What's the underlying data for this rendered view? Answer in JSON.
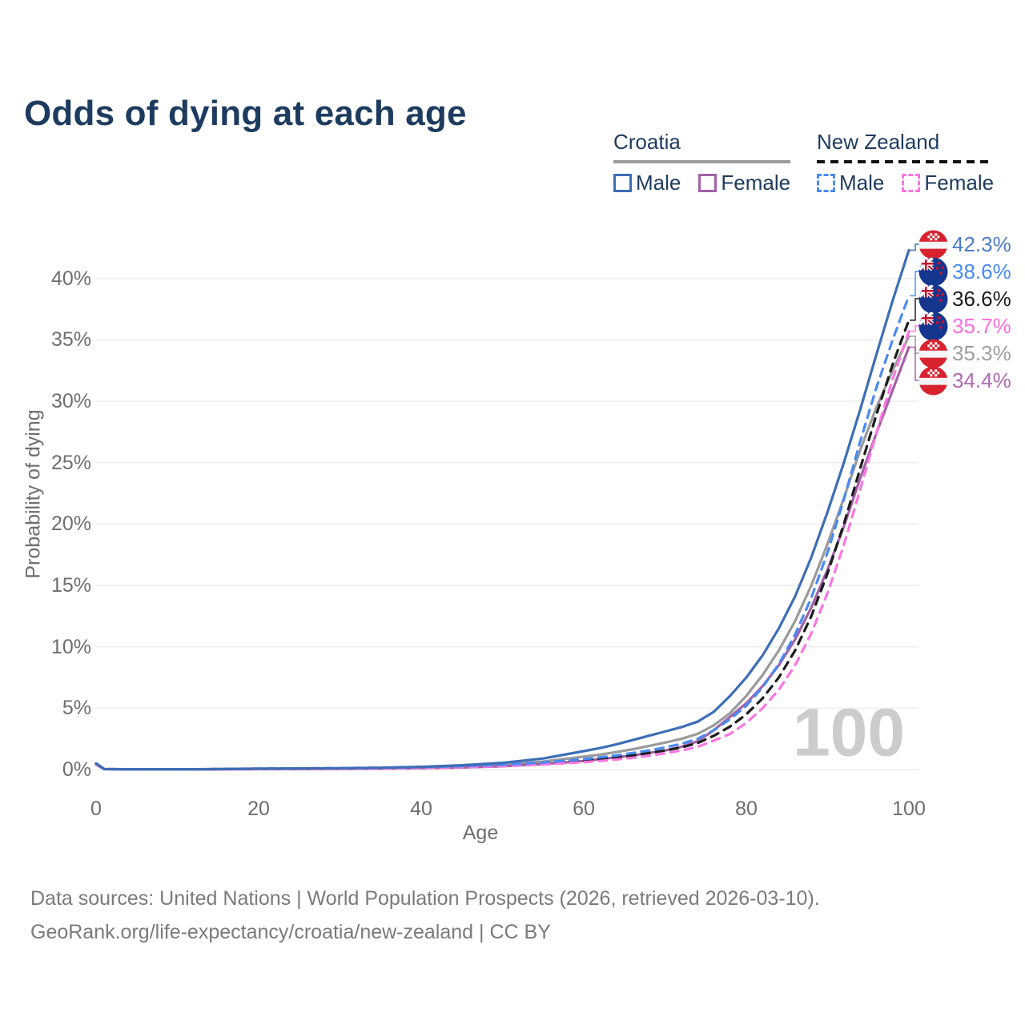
{
  "title": "Odds of dying at each age",
  "legend": {
    "groups": [
      {
        "label": "Croatia",
        "underline_style": "solid",
        "underline_color": "#9b9b9b",
        "items": [
          {
            "label": "Male",
            "color": "#3d6eb6",
            "dash": false
          },
          {
            "label": "Female",
            "color": "#a261a6",
            "dash": false
          }
        ]
      },
      {
        "label": "New Zealand",
        "underline_style": "dashed",
        "underline_color": "#111111",
        "items": [
          {
            "label": "Male",
            "color": "#4a8af2",
            "dash": true
          },
          {
            "label": "Female",
            "color": "#fb76e1",
            "dash": true
          }
        ]
      }
    ]
  },
  "axes": {
    "x": {
      "label": "Age",
      "tick_values": [
        0,
        20,
        40,
        60,
        80,
        100
      ],
      "tick_labels": [
        "0",
        "20",
        "40",
        "60",
        "80",
        "100"
      ],
      "range": [
        0,
        100
      ]
    },
    "y": {
      "label": "Probability of dying",
      "tick_values": [
        0,
        5,
        10,
        15,
        20,
        25,
        30,
        35,
        40
      ],
      "tick_labels": [
        "0%",
        "5%",
        "10%",
        "15%",
        "20%",
        "25%",
        "30%",
        "35%",
        "40%"
      ],
      "range": [
        0,
        43
      ],
      "unit": "%"
    }
  },
  "watermark": "100",
  "colors": {
    "gridline": "#ececec",
    "tick_text": "#6e6e6e",
    "title_text": "#1d3b5e",
    "footer_text": "#7a7a7a",
    "watermark_text": "#cccccc"
  },
  "chart_data": {
    "type": "line",
    "x_label": "Age",
    "y_label": "Probability of dying",
    "x": [
      0,
      1,
      5,
      10,
      15,
      20,
      25,
      30,
      35,
      40,
      45,
      50,
      55,
      60,
      62,
      64,
      66,
      68,
      70,
      72,
      74,
      76,
      78,
      80,
      82,
      84,
      86,
      88,
      90,
      92,
      94,
      96,
      98,
      100
    ],
    "series": [
      {
        "name": "Croatia Male",
        "color": "#3d6eb6",
        "dash": "solid",
        "flag": "croatia",
        "end_label": "42.3%",
        "end_label_color": "#4a7cc9",
        "values": [
          0.5,
          0.04,
          0.02,
          0.02,
          0.04,
          0.07,
          0.09,
          0.11,
          0.15,
          0.22,
          0.35,
          0.55,
          0.9,
          1.5,
          1.75,
          2.05,
          2.4,
          2.75,
          3.1,
          3.45,
          3.9,
          4.7,
          6.0,
          7.5,
          9.3,
          11.5,
          14.1,
          17.3,
          21.0,
          25.0,
          29.3,
          33.8,
          38.2,
          42.3
        ]
      },
      {
        "name": "New Zealand Male",
        "color": "#4a8af2",
        "dash": "dashed",
        "flag": "new-zealand",
        "end_label": "38.6%",
        "end_label_color": "#4a8af2",
        "values": [
          0.5,
          0.04,
          0.01,
          0.01,
          0.04,
          0.08,
          0.1,
          0.12,
          0.15,
          0.2,
          0.28,
          0.4,
          0.58,
          0.85,
          1.0,
          1.15,
          1.35,
          1.55,
          1.8,
          2.1,
          2.5,
          3.2,
          4.1,
          5.2,
          6.7,
          8.6,
          11.0,
          14.0,
          17.7,
          22.0,
          26.7,
          31.1,
          35.0,
          38.6
        ]
      },
      {
        "name": "New Zealand Both sexes",
        "color": "#1c1c1c",
        "dash": "dashed",
        "flag": "new-zealand",
        "end_label": "36.6%",
        "end_label_color": "#1c1c1c",
        "values": [
          0.48,
          0.04,
          0.01,
          0.01,
          0.03,
          0.06,
          0.08,
          0.1,
          0.12,
          0.17,
          0.24,
          0.34,
          0.5,
          0.72,
          0.85,
          1.0,
          1.15,
          1.35,
          1.55,
          1.8,
          2.15,
          2.75,
          3.5,
          4.5,
          5.8,
          7.5,
          9.7,
          12.5,
          16.0,
          20.0,
          24.5,
          28.9,
          33.0,
          36.6
        ]
      },
      {
        "name": "New Zealand Female",
        "color": "#fb76e1",
        "dash": "dashed",
        "flag": "new-zealand",
        "end_label": "35.7%",
        "end_label_color": "#ff6ede",
        "values": [
          0.45,
          0.03,
          0.01,
          0.01,
          0.02,
          0.04,
          0.05,
          0.07,
          0.09,
          0.13,
          0.19,
          0.28,
          0.41,
          0.6,
          0.7,
          0.82,
          0.95,
          1.12,
          1.32,
          1.55,
          1.85,
          2.35,
          2.9,
          3.8,
          5.0,
          6.5,
          8.5,
          11.1,
          14.4,
          18.3,
          22.8,
          27.4,
          31.8,
          35.7
        ]
      },
      {
        "name": "Croatia Both sexes",
        "color": "#9a9a9a",
        "dash": "solid",
        "flag": "croatia",
        "end_label": "35.3%",
        "end_label_color": "#9e9e9e",
        "values": [
          0.45,
          0.03,
          0.02,
          0.02,
          0.03,
          0.05,
          0.06,
          0.08,
          0.11,
          0.16,
          0.25,
          0.4,
          0.65,
          1.05,
          1.22,
          1.42,
          1.65,
          1.92,
          2.2,
          2.5,
          2.9,
          3.6,
          4.6,
          6.0,
          7.7,
          9.7,
          12.1,
          15.0,
          18.4,
          22.1,
          26.0,
          29.5,
          32.5,
          35.3
        ]
      },
      {
        "name": "Croatia Female",
        "color": "#a261a6",
        "dash": "solid",
        "flag": "croatia",
        "end_label": "34.4%",
        "end_label_color": "#b069b3",
        "values": [
          0.4,
          0.03,
          0.01,
          0.01,
          0.02,
          0.03,
          0.04,
          0.05,
          0.07,
          0.11,
          0.17,
          0.27,
          0.45,
          0.7,
          0.85,
          1.0,
          1.15,
          1.35,
          1.55,
          1.85,
          2.3,
          3.2,
          4.3,
          5.4,
          6.8,
          8.5,
          10.6,
          13.2,
          16.3,
          19.8,
          23.7,
          27.4,
          30.9,
          34.4
        ]
      }
    ]
  },
  "footer": {
    "line1": "Data sources: United Nations | World Population Prospects (2026, retrieved 2026-03-10).",
    "line2": "GeoRank.org/life-expectancy/croatia/new-zealand | CC BY"
  }
}
